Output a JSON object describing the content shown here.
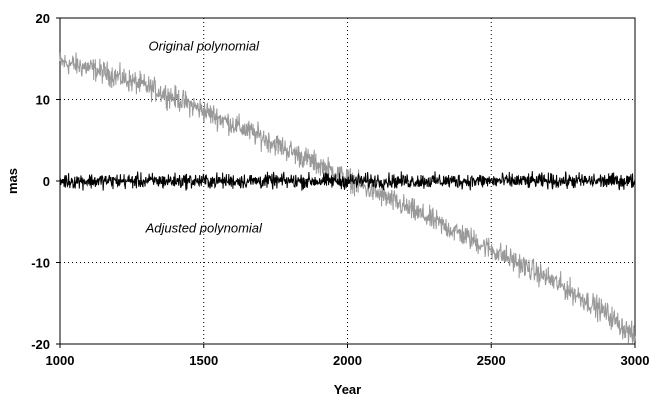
{
  "chart_data": {
    "type": "line",
    "title": "",
    "xlabel": "Year",
    "ylabel": "mas",
    "xlim": [
      1000,
      3000
    ],
    "ylim": [
      -20,
      20
    ],
    "x_ticks": [
      1000,
      1500,
      2000,
      2500,
      3000
    ],
    "y_ticks": [
      20,
      10,
      0,
      -10,
      -20
    ],
    "grid": "dotted",
    "series": [
      {
        "name": "Original polynomial",
        "color": "#999999",
        "noise_amplitude": 1.5,
        "x": [
          1000,
          1100,
          1200,
          1300,
          1400,
          1500,
          1600,
          1700,
          1800,
          1900,
          2000,
          2100,
          2200,
          2300,
          2400,
          2500,
          2600,
          2700,
          2800,
          2900,
          3000
        ],
        "y": [
          14.6,
          13.9,
          12.8,
          11.6,
          10.2,
          8.6,
          7.0,
          5.4,
          3.7,
          2.0,
          0.3,
          -1.5,
          -3.2,
          -4.9,
          -6.6,
          -8.4,
          -10.2,
          -12.0,
          -14.0,
          -16.2,
          -19.2
        ]
      },
      {
        "name": "Adjusted polynomial",
        "color": "#000000",
        "noise_amplitude": 1.0,
        "x": [
          1000,
          1500,
          2000,
          2500,
          3000
        ],
        "y": [
          0,
          0,
          0,
          0,
          0
        ]
      }
    ],
    "annotations": [
      {
        "text": "Original polynomial",
        "x": 1500,
        "y": 16
      },
      {
        "text": "Adjusted polynomial",
        "x": 1500,
        "y": -6.3
      }
    ]
  }
}
